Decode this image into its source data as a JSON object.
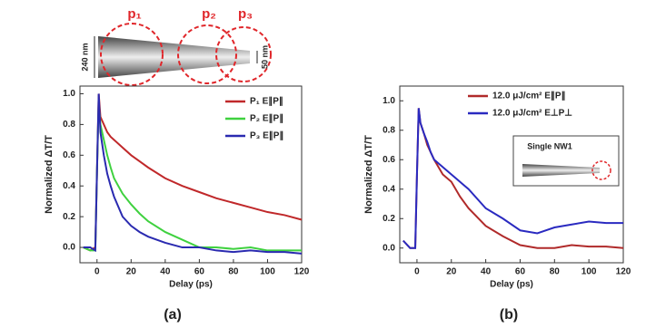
{
  "chart_data": [
    {
      "type": "line",
      "panel_label": "(a)",
      "x_label": "Delay (ps)",
      "y_label": "Normalized ΔT/T",
      "annotations": [
        "p₁",
        "p₂",
        "p₃",
        "240 nm",
        "50 nm"
      ],
      "xlim": [
        -10,
        120
      ],
      "ylim": [
        -0.1,
        1.05
      ],
      "xticks": [
        0,
        20,
        40,
        60,
        80,
        100,
        120
      ],
      "yticks": [
        {
          "value": 0,
          "label": "0.0"
        },
        0.2,
        0.4,
        0.6,
        0.8,
        {
          "value": 1,
          "label": "1.0"
        }
      ],
      "x": [
        -8,
        -4,
        -1,
        0,
        1,
        2,
        4,
        6,
        8,
        10,
        15,
        20,
        25,
        30,
        40,
        50,
        60,
        70,
        80,
        90,
        100,
        110,
        120
      ],
      "series": [
        {
          "name": "P₁ E∥P∥",
          "color": "#c0282a",
          "values": [
            0.0,
            -0.02,
            0.0,
            0.5,
            1.0,
            0.85,
            0.8,
            0.75,
            0.72,
            0.7,
            0.65,
            0.6,
            0.56,
            0.52,
            0.45,
            0.4,
            0.36,
            0.32,
            0.29,
            0.26,
            0.23,
            0.21,
            0.18
          ]
        },
        {
          "name": "P₂ E∥P∥",
          "color": "#3fd13f",
          "values": [
            0.0,
            -0.02,
            -0.02,
            0.5,
            0.95,
            0.8,
            0.7,
            0.6,
            0.52,
            0.45,
            0.35,
            0.28,
            0.22,
            0.17,
            0.1,
            0.05,
            0.0,
            0.0,
            -0.01,
            0.0,
            -0.02,
            -0.02,
            -0.02
          ]
        },
        {
          "name": "P₃ E∥P∥",
          "color": "#2a2ab0",
          "values": [
            0.0,
            0.0,
            -0.02,
            0.5,
            1.0,
            0.75,
            0.6,
            0.48,
            0.4,
            0.33,
            0.2,
            0.14,
            0.1,
            0.07,
            0.03,
            0.0,
            0.0,
            -0.02,
            -0.03,
            -0.02,
            -0.03,
            -0.03,
            -0.04
          ]
        }
      ]
    },
    {
      "type": "line",
      "panel_label": "(b)",
      "x_label": "Delay (ps)",
      "y_label": "Normalized ΔT/T",
      "annotations": [
        "Single NW1"
      ],
      "xlim": [
        -10,
        120
      ],
      "ylim": [
        -0.1,
        1.1
      ],
      "xticks": [
        0,
        20,
        40,
        60,
        80,
        100,
        120
      ],
      "yticks": [
        {
          "value": 0,
          "label": "0.0"
        },
        0.2,
        0.4,
        0.6,
        0.8,
        {
          "value": 1,
          "label": "1.0"
        }
      ],
      "x": [
        -8,
        -4,
        -1,
        0,
        1,
        2,
        4,
        6,
        8,
        10,
        15,
        20,
        25,
        30,
        40,
        50,
        60,
        70,
        80,
        90,
        100,
        110,
        120
      ],
      "series": [
        {
          "name": "12.0 μJ/cm² E∥P∥",
          "color": "#b02a2a",
          "values": [
            0.05,
            0.0,
            0.0,
            0.5,
            0.95,
            0.85,
            0.78,
            0.7,
            0.65,
            0.6,
            0.5,
            0.45,
            0.35,
            0.27,
            0.15,
            0.08,
            0.02,
            0.0,
            0.0,
            0.02,
            0.01,
            0.01,
            0.0
          ]
        },
        {
          "name": "12.0 μJ/cm² E⊥P⊥",
          "color": "#2a2ac0",
          "values": [
            0.05,
            0.0,
            0.0,
            0.5,
            0.95,
            0.85,
            0.78,
            0.72,
            0.65,
            0.6,
            0.55,
            0.5,
            0.45,
            0.4,
            0.27,
            0.2,
            0.12,
            0.1,
            0.14,
            0.16,
            0.18,
            0.17,
            0.17
          ]
        }
      ]
    }
  ]
}
